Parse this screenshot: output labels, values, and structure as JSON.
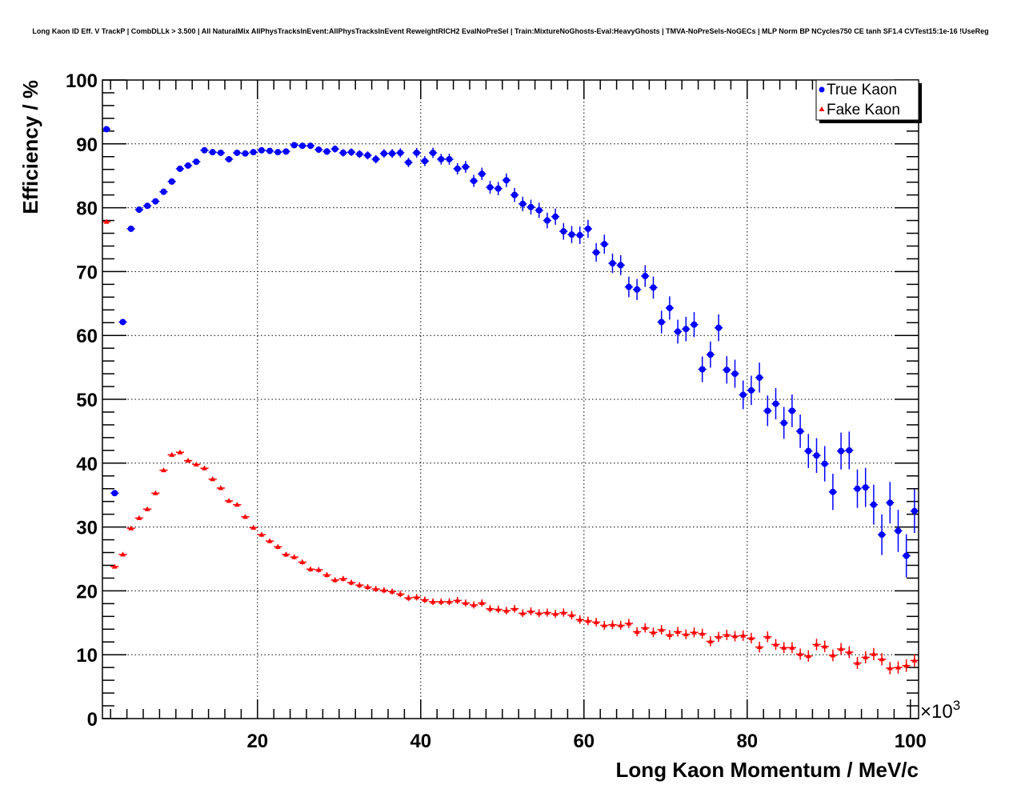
{
  "chart_data": {
    "type": "scatter",
    "title": "Long Kaon ID Eff. V TrackP | CombDLLk > 3.500 | All NaturalMix AllPhysTracksInEvent:AllPhysTracksInEvent ReweightRICH2 EvalNoPreSel | Train:MixtureNoGhosts-Eval:HeavyGhosts | TMVA-NoPreSels-NoGECs | MLP Norm BP NCycles750 CE tanh SF1.4 CVTest15:1e-16 !UseReg",
    "xlabel": "Long Kaon Momentum / MeV/c",
    "ylabel": "Efficiency / %",
    "x_multiplier": "×10",
    "x_multiplier_exp": "3",
    "xlim": [
      1,
      101
    ],
    "ylim": [
      0,
      100
    ],
    "x_ticks": [
      "20",
      "40",
      "60",
      "80",
      "100"
    ],
    "y_ticks": [
      "0",
      "10",
      "20",
      "30",
      "40",
      "50",
      "60",
      "70",
      "80",
      "90",
      "100"
    ],
    "grid": true,
    "legend_position": "top-right",
    "x_start": 1.5,
    "x_step": 1,
    "series": [
      {
        "name": "True Kaon",
        "color": "#0000ff",
        "marker": "circle",
        "values": [
          92.3,
          35.3,
          62.1,
          76.7,
          79.7,
          80.3,
          81.0,
          82.5,
          84.1,
          86.1,
          86.6,
          87.2,
          89.0,
          88.7,
          88.6,
          87.6,
          88.6,
          88.5,
          88.7,
          89.0,
          88.9,
          88.7,
          88.8,
          89.8,
          89.7,
          89.7,
          89.1,
          88.8,
          89.2,
          88.6,
          88.7,
          88.4,
          88.2,
          87.6,
          88.5,
          88.5,
          88.6,
          87.1,
          88.6,
          87.3,
          88.6,
          87.6,
          87.6,
          86.1,
          86.4,
          84.2,
          85.3,
          83.2,
          83.0,
          84.3,
          82.0,
          80.6,
          80.1,
          79.6,
          78.0,
          78.6,
          76.3,
          75.8,
          75.7,
          76.7,
          73.0,
          74.3,
          71.3,
          71.0,
          67.6,
          67.2,
          69.3,
          67.5,
          62.1,
          64.3,
          60.6,
          61.0,
          61.7,
          54.7,
          57.0,
          61.2,
          54.6,
          54.0,
          50.7,
          51.4,
          53.4,
          48.2,
          49.3,
          46.3,
          48.2,
          45.0,
          41.9,
          41.2,
          39.9,
          35.5,
          41.9,
          42.0,
          36.0,
          36.2,
          33.5,
          28.8,
          33.8,
          29.4,
          25.5,
          32.5
        ]
      },
      {
        "name": "Fake Kaon",
        "color": "#ff0000",
        "marker": "triangle",
        "values": [
          77.8,
          23.8,
          25.7,
          29.8,
          31.4,
          32.8,
          35.3,
          38.9,
          41.3,
          41.7,
          40.4,
          39.8,
          39.2,
          37.5,
          36.1,
          34.1,
          33.5,
          31.6,
          29.9,
          28.8,
          27.8,
          26.9,
          25.7,
          25.3,
          24.5,
          23.4,
          23.3,
          22.5,
          21.7,
          21.9,
          21.3,
          20.9,
          20.6,
          20.3,
          20.1,
          19.9,
          19.5,
          18.9,
          19.0,
          18.6,
          18.3,
          18.3,
          18.3,
          18.5,
          18.1,
          17.8,
          18.1,
          17.2,
          17.1,
          16.9,
          17.2,
          16.5,
          16.8,
          16.5,
          16.6,
          16.4,
          16.6,
          16.2,
          15.5,
          15.3,
          15.1,
          14.6,
          14.7,
          14.6,
          14.9,
          13.6,
          14.2,
          13.5,
          13.9,
          13.1,
          13.6,
          13.2,
          13.5,
          13.3,
          12.1,
          12.8,
          13.1,
          12.9,
          13.0,
          12.6,
          11.2,
          12.8,
          11.6,
          11.1,
          11.1,
          10.1,
          9.8,
          11.6,
          11.3,
          9.9,
          10.9,
          10.4,
          8.7,
          9.6,
          10.1,
          9.3,
          7.9,
          8.0,
          8.3,
          9.1
        ]
      }
    ]
  }
}
